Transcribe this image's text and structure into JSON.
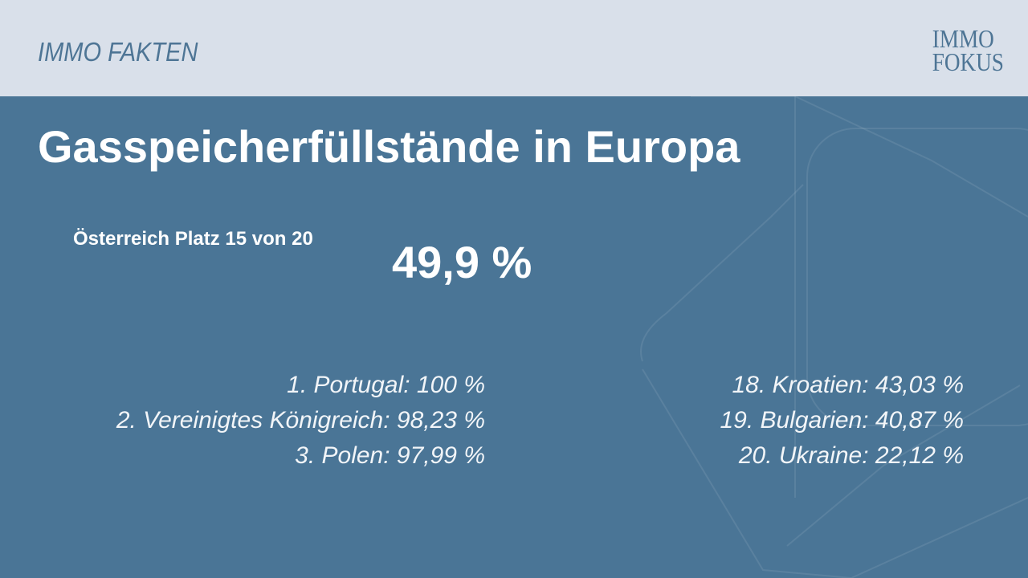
{
  "header": {
    "section_label": "IMMO FAKTEN",
    "logo_line1": "IMMO",
    "logo_line2": "FOKUS"
  },
  "main": {
    "title": "Gasspeicherfüllstände in Europa",
    "austria_rank": "Österreich Platz 15 von 20",
    "austria_value": "49,9 %",
    "top_list": [
      "1. Portugal: 100 %",
      "2. Vereinigtes Königreich: 98,23 %",
      "3. Polen: 97,99 %"
    ],
    "bottom_list": [
      "18. Kroatien: 43,03 %",
      "19. Bulgarien: 40,87 %",
      "20. Ukraine: 22,12 %"
    ]
  },
  "colors": {
    "background": "#4a7596",
    "header": "#d9e0ea",
    "brand": "#4e7595"
  }
}
